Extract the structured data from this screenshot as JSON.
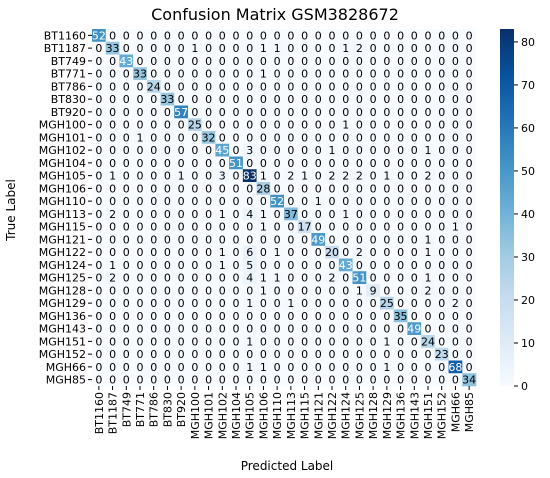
{
  "chart_data": {
    "type": "heatmap",
    "title": "Confusion Matrix GSM3828672",
    "xlabel": "Predicted Label",
    "ylabel": "True Label",
    "labels": [
      "BT1160",
      "BT1187",
      "BT749",
      "BT771",
      "BT786",
      "BT830",
      "BT920",
      "MGH100",
      "MGH101",
      "MGH102",
      "MGH104",
      "MGH105",
      "MGH106",
      "MGH110",
      "MGH113",
      "MGH115",
      "MGH121",
      "MGH122",
      "MGH124",
      "MGH125",
      "MGH128",
      "MGH129",
      "MGH136",
      "MGH143",
      "MGH151",
      "MGH152",
      "MGH66",
      "MGH85"
    ],
    "matrix": [
      [
        52,
        0,
        0,
        0,
        0,
        0,
        0,
        0,
        0,
        0,
        0,
        0,
        0,
        0,
        0,
        0,
        0,
        0,
        0,
        0,
        0,
        0,
        0,
        0,
        0,
        0,
        0,
        0
      ],
      [
        0,
        33,
        0,
        0,
        0,
        0,
        0,
        1,
        0,
        0,
        0,
        0,
        1,
        1,
        0,
        0,
        0,
        0,
        1,
        2,
        0,
        0,
        0,
        0,
        0,
        0,
        0,
        0
      ],
      [
        0,
        0,
        43,
        0,
        0,
        0,
        0,
        0,
        0,
        0,
        0,
        0,
        0,
        0,
        0,
        0,
        0,
        0,
        0,
        0,
        0,
        0,
        0,
        0,
        0,
        0,
        0,
        0
      ],
      [
        0,
        0,
        0,
        33,
        0,
        0,
        0,
        0,
        0,
        0,
        0,
        0,
        1,
        0,
        0,
        0,
        0,
        0,
        0,
        0,
        0,
        0,
        0,
        0,
        0,
        0,
        0,
        0
      ],
      [
        0,
        0,
        0,
        0,
        24,
        0,
        0,
        0,
        0,
        0,
        0,
        0,
        0,
        0,
        0,
        0,
        0,
        0,
        0,
        0,
        0,
        0,
        0,
        0,
        0,
        0,
        0,
        0
      ],
      [
        0,
        0,
        0,
        0,
        0,
        33,
        0,
        0,
        0,
        0,
        0,
        0,
        0,
        0,
        0,
        0,
        0,
        0,
        0,
        0,
        0,
        0,
        0,
        0,
        0,
        0,
        0,
        0
      ],
      [
        0,
        0,
        0,
        0,
        0,
        0,
        57,
        0,
        0,
        0,
        0,
        0,
        0,
        0,
        0,
        0,
        0,
        0,
        0,
        0,
        0,
        0,
        0,
        0,
        0,
        0,
        0,
        0
      ],
      [
        0,
        0,
        0,
        0,
        0,
        0,
        0,
        25,
        0,
        0,
        0,
        0,
        0,
        0,
        0,
        0,
        0,
        0,
        1,
        0,
        0,
        0,
        0,
        0,
        0,
        0,
        0,
        0
      ],
      [
        0,
        0,
        0,
        1,
        0,
        0,
        0,
        0,
        32,
        0,
        0,
        0,
        0,
        0,
        0,
        0,
        0,
        0,
        0,
        0,
        0,
        0,
        0,
        0,
        0,
        0,
        0,
        0
      ],
      [
        0,
        0,
        0,
        0,
        0,
        0,
        0,
        0,
        0,
        45,
        0,
        3,
        0,
        0,
        0,
        0,
        0,
        1,
        0,
        0,
        0,
        0,
        0,
        0,
        1,
        0,
        0,
        0
      ],
      [
        0,
        0,
        0,
        0,
        0,
        0,
        0,
        0,
        0,
        0,
        51,
        0,
        0,
        0,
        0,
        0,
        0,
        0,
        0,
        0,
        0,
        0,
        0,
        0,
        0,
        0,
        0,
        0
      ],
      [
        0,
        1,
        0,
        0,
        0,
        0,
        1,
        0,
        0,
        3,
        0,
        83,
        1,
        0,
        2,
        1,
        0,
        2,
        2,
        2,
        0,
        1,
        0,
        0,
        2,
        0,
        0,
        0
      ],
      [
        0,
        0,
        0,
        0,
        0,
        0,
        0,
        0,
        0,
        0,
        0,
        0,
        28,
        0,
        0,
        0,
        0,
        0,
        0,
        0,
        0,
        0,
        0,
        0,
        0,
        0,
        0,
        0
      ],
      [
        0,
        0,
        0,
        0,
        0,
        0,
        0,
        0,
        0,
        0,
        0,
        0,
        0,
        52,
        0,
        0,
        1,
        0,
        0,
        0,
        0,
        0,
        0,
        0,
        0,
        0,
        0,
        0
      ],
      [
        0,
        2,
        0,
        0,
        0,
        0,
        0,
        0,
        0,
        1,
        0,
        4,
        1,
        0,
        37,
        0,
        0,
        0,
        1,
        0,
        0,
        0,
        0,
        0,
        0,
        0,
        0,
        0
      ],
      [
        0,
        0,
        0,
        0,
        0,
        0,
        0,
        0,
        0,
        0,
        0,
        0,
        1,
        0,
        0,
        17,
        0,
        0,
        0,
        0,
        0,
        0,
        0,
        0,
        0,
        0,
        1,
        0
      ],
      [
        0,
        0,
        0,
        0,
        0,
        0,
        0,
        0,
        0,
        0,
        0,
        0,
        0,
        0,
        0,
        0,
        49,
        0,
        0,
        0,
        0,
        0,
        0,
        0,
        1,
        0,
        0,
        0
      ],
      [
        0,
        0,
        0,
        0,
        0,
        0,
        0,
        0,
        0,
        1,
        0,
        6,
        0,
        1,
        0,
        0,
        0,
        20,
        0,
        2,
        0,
        0,
        0,
        0,
        1,
        0,
        0,
        0
      ],
      [
        0,
        1,
        0,
        0,
        0,
        0,
        0,
        0,
        0,
        1,
        0,
        5,
        0,
        0,
        0,
        0,
        0,
        0,
        43,
        0,
        0,
        0,
        0,
        0,
        0,
        0,
        0,
        0
      ],
      [
        0,
        2,
        0,
        0,
        0,
        0,
        0,
        0,
        0,
        0,
        0,
        4,
        1,
        1,
        0,
        0,
        0,
        2,
        0,
        51,
        0,
        0,
        0,
        0,
        1,
        0,
        0,
        0
      ],
      [
        0,
        0,
        0,
        0,
        0,
        0,
        0,
        0,
        0,
        0,
        0,
        0,
        1,
        0,
        0,
        0,
        0,
        0,
        0,
        1,
        9,
        0,
        0,
        0,
        2,
        0,
        0,
        0
      ],
      [
        0,
        0,
        0,
        0,
        0,
        0,
        0,
        0,
        0,
        0,
        0,
        1,
        0,
        0,
        1,
        0,
        0,
        0,
        0,
        0,
        0,
        25,
        0,
        0,
        0,
        0,
        2,
        0
      ],
      [
        0,
        0,
        0,
        0,
        0,
        0,
        0,
        0,
        0,
        0,
        0,
        0,
        0,
        0,
        0,
        0,
        0,
        0,
        0,
        0,
        0,
        0,
        35,
        0,
        0,
        0,
        0,
        0
      ],
      [
        0,
        0,
        0,
        0,
        0,
        0,
        0,
        0,
        0,
        0,
        0,
        0,
        0,
        0,
        0,
        0,
        0,
        0,
        0,
        0,
        0,
        0,
        0,
        49,
        0,
        0,
        0,
        0
      ],
      [
        0,
        0,
        0,
        0,
        0,
        0,
        0,
        0,
        0,
        0,
        0,
        1,
        0,
        0,
        0,
        0,
        0,
        0,
        0,
        0,
        0,
        1,
        0,
        0,
        24,
        0,
        0,
        0
      ],
      [
        0,
        0,
        0,
        0,
        0,
        0,
        0,
        0,
        0,
        0,
        0,
        0,
        0,
        0,
        0,
        0,
        0,
        0,
        0,
        0,
        0,
        0,
        0,
        0,
        0,
        23,
        0,
        0
      ],
      [
        0,
        0,
        0,
        0,
        0,
        0,
        0,
        0,
        0,
        0,
        0,
        1,
        1,
        0,
        0,
        0,
        0,
        0,
        0,
        0,
        0,
        1,
        0,
        0,
        0,
        0,
        68,
        0
      ],
      [
        0,
        0,
        0,
        0,
        0,
        0,
        0,
        0,
        0,
        0,
        0,
        0,
        0,
        0,
        0,
        0,
        0,
        0,
        0,
        0,
        0,
        0,
        0,
        0,
        0,
        0,
        0,
        34
      ]
    ],
    "colorbar": {
      "min": 0,
      "max": 83,
      "ticks": [
        0,
        10,
        20,
        30,
        40,
        50,
        60,
        70,
        80
      ],
      "colormap": "Blues"
    },
    "grid": false,
    "colors": {
      "low": "#f7fbff",
      "high": "#08306b",
      "text_dark": "#000000",
      "text_light": "#ffffff"
    }
  }
}
